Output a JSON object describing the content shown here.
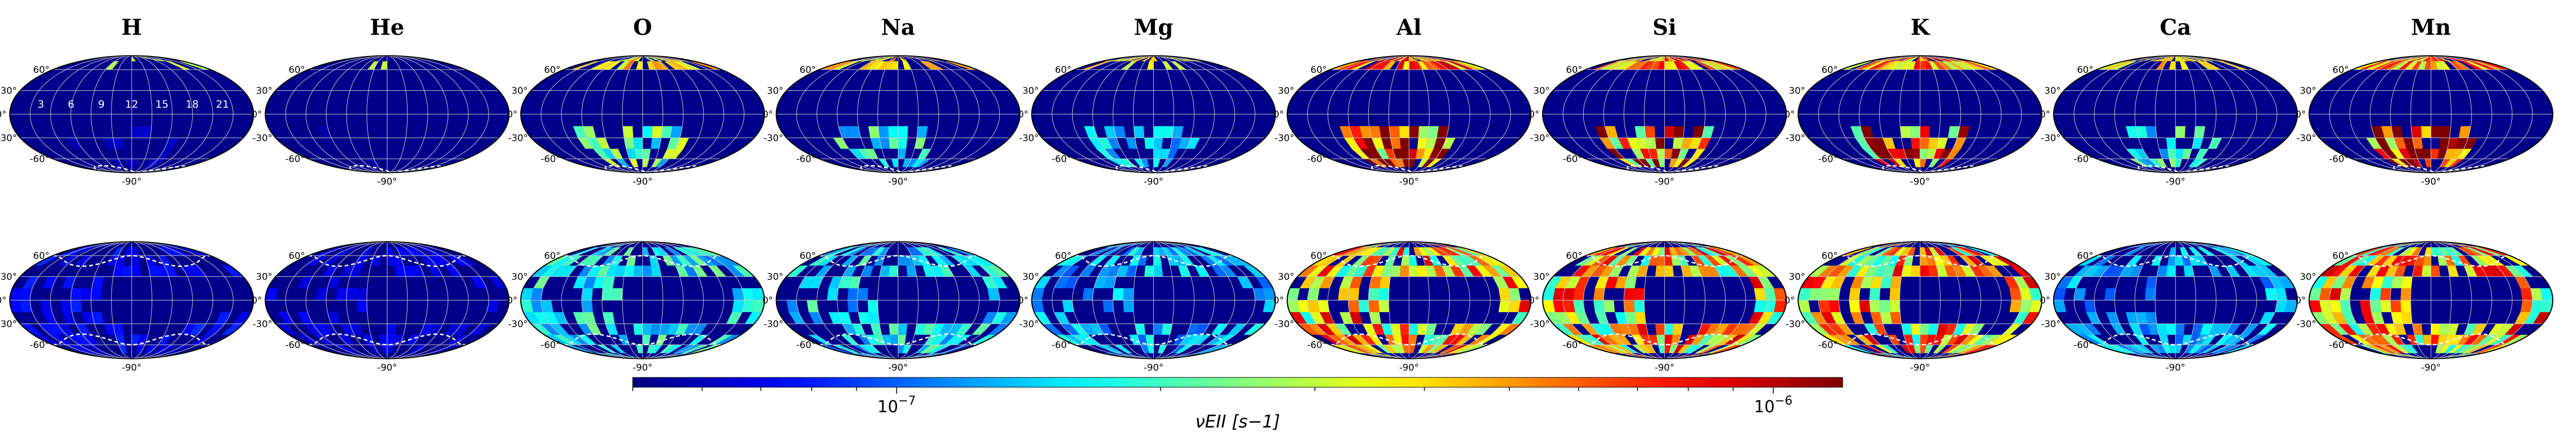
{
  "chart_data": {
    "type": "heatmap",
    "projection": "mollweide",
    "elements": [
      "H",
      "He",
      "O",
      "Na",
      "Mg",
      "Al",
      "Si",
      "K",
      "Ca",
      "Mn"
    ],
    "rows": 2,
    "lat_tick_labels": [
      "60°",
      "30°",
      "0°",
      "-30°",
      "-60°"
    ],
    "lon_tick_label": "-90°",
    "hour_tick_labels": [
      "3",
      "6",
      "9",
      "12",
      "15",
      "18",
      "21"
    ],
    "grid": true,
    "colormap": "jet",
    "colorbar": {
      "scale": "log",
      "range": [
        5e-08,
        1.2e-06
      ],
      "tick_labels": [
        "10^{-7}",
        "10^{-6}"
      ],
      "tick_values": [
        1e-07,
        1e-06
      ],
      "label": "ν_{EII} [s^{-1}]",
      "label_display": "νEII [s−1]",
      "placement": "bottom"
    },
    "relative_intensity": {
      "H": [
        0.1,
        0.25
      ],
      "He": [
        0.06,
        0.2
      ],
      "O": [
        0.55,
        0.6
      ],
      "Na": [
        0.5,
        0.58
      ],
      "Mg": [
        0.45,
        0.52
      ],
      "Al": [
        0.95,
        0.95
      ],
      "Si": [
        0.9,
        0.95
      ],
      "K": [
        0.9,
        0.95
      ],
      "Ca": [
        0.5,
        0.5
      ],
      "Mn": [
        0.9,
        0.95
      ]
    }
  }
}
